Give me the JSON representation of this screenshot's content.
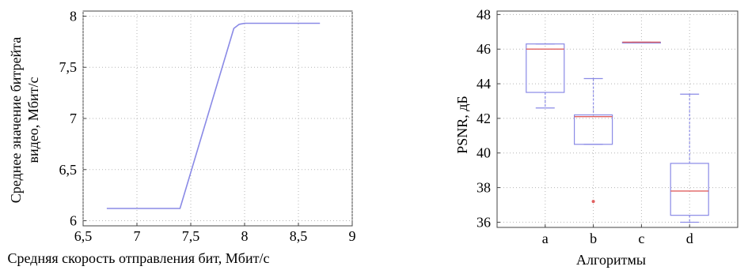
{
  "chart_data": [
    {
      "type": "line",
      "xlabel": "Средняя скорость отправления бит, Мбит/с",
      "ylabel_lines": [
        "Среднее значение битрейта",
        "видео, Мбит/с"
      ],
      "x_tick_labels": [
        "6,5",
        "7",
        "7,5",
        "8",
        "8,5",
        "9"
      ],
      "y_tick_labels": [
        "6",
        "6,5",
        "7",
        "7,5",
        "8"
      ],
      "x_ticks": [
        6.5,
        7,
        7.5,
        8,
        8.5,
        9
      ],
      "y_ticks": [
        6,
        6.5,
        7,
        7.5,
        8
      ],
      "xlim": [
        6.5,
        9
      ],
      "ylim": [
        5.95,
        8.05
      ],
      "grid": true,
      "series": [
        {
          "x": [
            6.72,
            7.4,
            7.9,
            7.95,
            8.0,
            8.7
          ],
          "y": [
            6.12,
            6.12,
            7.88,
            7.92,
            7.93,
            7.93
          ]
        }
      ],
      "color": "#8a8ae6"
    },
    {
      "type": "box",
      "xlabel": "Алгоритмы",
      "ylabel": "PSNR, дБ",
      "categories": [
        "a",
        "b",
        "c",
        "d"
      ],
      "y_ticks": [
        36,
        38,
        40,
        42,
        44,
        46,
        48
      ],
      "y_tick_labels": [
        "36",
        "38",
        "40",
        "42",
        "44",
        "46",
        "48"
      ],
      "ylim": [
        35.7,
        48.2
      ],
      "grid": true,
      "boxes": [
        {
          "category": "a",
          "whisker_low": 42.6,
          "q1": 43.5,
          "median": 46.0,
          "q3": 46.3,
          "whisker_high": 46.3,
          "outliers": []
        },
        {
          "category": "b",
          "whisker_low": 40.5,
          "q1": 40.5,
          "median": 42.1,
          "q3": 42.2,
          "whisker_high": 44.3,
          "outliers": [
            37.2
          ]
        },
        {
          "category": "c",
          "whisker_low": 46.4,
          "q1": 46.4,
          "median": 46.4,
          "q3": 46.4,
          "whisker_high": 46.4,
          "outliers": []
        },
        {
          "category": "d",
          "whisker_low": 36.0,
          "q1": 36.4,
          "median": 37.8,
          "q3": 39.4,
          "whisker_high": 43.4,
          "outliers": []
        }
      ],
      "box_color": "#8a8ae6",
      "median_color": "#e06060"
    }
  ]
}
